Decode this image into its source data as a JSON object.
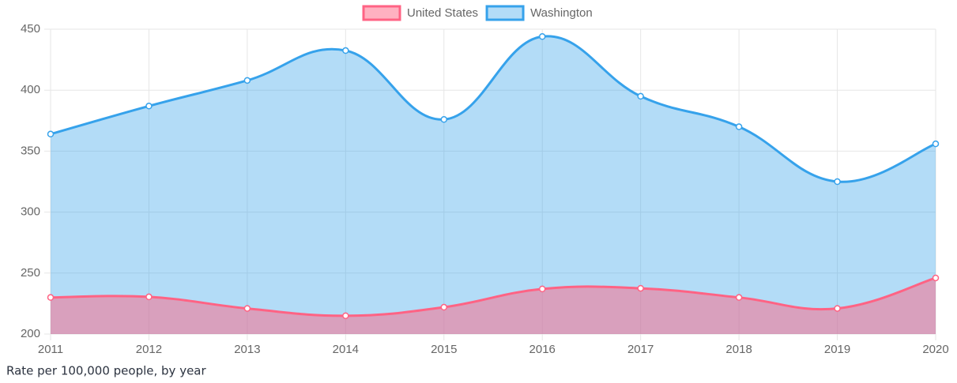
{
  "chart_data": {
    "type": "area",
    "categories": [
      "2011",
      "2012",
      "2013",
      "2014",
      "2015",
      "2016",
      "2017",
      "2018",
      "2019",
      "2020"
    ],
    "series": [
      {
        "name": "United States",
        "color": "#ff6384",
        "fill": "rgba(255,99,132,0.5)",
        "values": [
          230,
          230.5,
          221,
          215,
          222,
          237,
          237.5,
          230,
          221,
          246
        ]
      },
      {
        "name": "Washington",
        "color": "#36a2eb",
        "fill": "rgba(54,162,235,0.38)",
        "values": [
          364,
          387,
          408,
          432.5,
          376,
          444,
          395,
          370,
          325,
          356
        ]
      }
    ],
    "ylim": [
      200,
      450
    ],
    "yticks": [
      200,
      250,
      300,
      350,
      400,
      450
    ],
    "grid": true,
    "legend": "top",
    "caption": "Rate per 100,000 people, by year"
  }
}
